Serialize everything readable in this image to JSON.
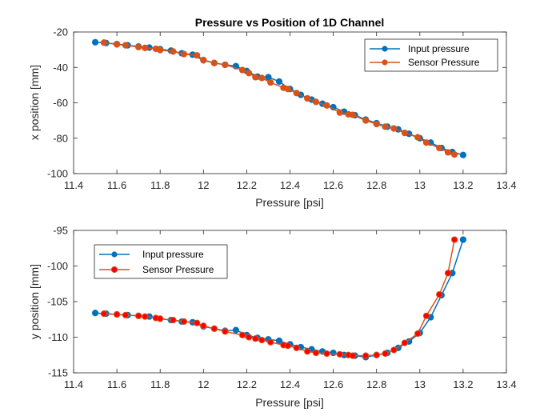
{
  "colors": {
    "input": "#0072BD",
    "sensor": "#D95319",
    "axis": "#262626",
    "sensor_marker_face_bottom": "#FF0000"
  },
  "chart_data": [
    {
      "type": "line",
      "title": "Pressure vs Position of 1D Channel",
      "xlabel": "Pressure [psi]",
      "ylabel": "x position [mm]",
      "xlim": [
        11.4,
        13.4
      ],
      "ylim": [
        -100,
        -20
      ],
      "xticks": [
        11.4,
        11.6,
        11.8,
        12,
        12.2,
        12.4,
        12.6,
        12.8,
        13,
        13.2,
        13.4
      ],
      "yticks": [
        -100,
        -80,
        -60,
        -40,
        -20
      ],
      "xtick_labels": [
        "11.4",
        "11.6",
        "11.8",
        "12",
        "12.2",
        "12.4",
        "12.6",
        "12.8",
        "13",
        "13.2",
        "13.4"
      ],
      "ytick_labels": [
        "-100",
        "-80",
        "-60",
        "-40",
        "-20"
      ],
      "legend": {
        "position": "top-right",
        "entries": [
          "Input pressure",
          "Sensor Pressure"
        ]
      },
      "series": [
        {
          "name": "Input pressure",
          "x": [
            11.5,
            11.55,
            11.6,
            11.65,
            11.7,
            11.75,
            11.8,
            11.85,
            11.9,
            11.95,
            12.0,
            12.05,
            12.1,
            12.15,
            12.2,
            12.25,
            12.3,
            12.35,
            12.4,
            12.45,
            12.5,
            12.55,
            12.6,
            12.65,
            12.7,
            12.75,
            12.8,
            12.85,
            12.9,
            12.95,
            13.0,
            13.05,
            13.1,
            13.15,
            13.2
          ],
          "y": [
            -25.8,
            -26.2,
            -26.8,
            -27.5,
            -28.2,
            -28.8,
            -29.7,
            -30.5,
            -32.0,
            -32.8,
            -36.0,
            -37.5,
            -38.5,
            -39.3,
            -42.0,
            -45.2,
            -45.5,
            -48.0,
            -52.2,
            -55.5,
            -58.2,
            -60.5,
            -62.5,
            -65.0,
            -67.0,
            -69.5,
            -71.5,
            -73.5,
            -75.0,
            -77.5,
            -80.0,
            -82.5,
            -85.5,
            -87.8,
            -89.5
          ]
        },
        {
          "name": "Sensor Pressure",
          "x": [
            11.54,
            11.6,
            11.64,
            11.7,
            11.73,
            11.78,
            11.8,
            11.86,
            11.91,
            11.97,
            12.0,
            12.05,
            12.1,
            12.18,
            12.21,
            12.24,
            12.27,
            12.31,
            12.37,
            12.39,
            12.43,
            12.48,
            12.52,
            12.57,
            12.63,
            12.67,
            12.69,
            12.75,
            12.8,
            12.84,
            12.88,
            12.93,
            12.99,
            13.03,
            13.09,
            13.13,
            13.16
          ],
          "y": [
            -26.0,
            -27.0,
            -27.5,
            -28.5,
            -29.0,
            -29.5,
            -30.2,
            -31.0,
            -32.5,
            -33.2,
            -35.8,
            -37.5,
            -38.5,
            -41.5,
            -43.2,
            -45.5,
            -46.0,
            -48.5,
            -51.5,
            -52.2,
            -54.5,
            -57.5,
            -59.5,
            -61.5,
            -65.5,
            -66.5,
            -66.8,
            -70.0,
            -72.0,
            -73.5,
            -74.5,
            -77.0,
            -79.5,
            -82.5,
            -85.5,
            -88.0,
            -89.2
          ]
        }
      ]
    },
    {
      "type": "line",
      "title": "",
      "xlabel": "Pressure [psi]",
      "ylabel": "y position [mm]",
      "xlim": [
        11.4,
        13.4
      ],
      "ylim": [
        -115,
        -95
      ],
      "xticks": [
        11.4,
        11.6,
        11.8,
        12,
        12.2,
        12.4,
        12.6,
        12.8,
        13,
        13.2,
        13.4
      ],
      "yticks": [
        -115,
        -110,
        -105,
        -100,
        -95
      ],
      "xtick_labels": [
        "11.4",
        "11.6",
        "11.8",
        "12",
        "12.2",
        "12.4",
        "12.6",
        "12.8",
        "13",
        "13.2",
        "13.4"
      ],
      "ytick_labels": [
        "-115",
        "-110",
        "-105",
        "-100",
        "-95"
      ],
      "legend": {
        "position": "top-left",
        "entries": [
          "Input pressure",
          "Sensor Pressure"
        ]
      },
      "series": [
        {
          "name": "Input pressure",
          "x": [
            11.5,
            11.55,
            11.6,
            11.65,
            11.7,
            11.75,
            11.8,
            11.85,
            11.9,
            11.95,
            12.0,
            12.05,
            12.1,
            12.15,
            12.2,
            12.25,
            12.3,
            12.35,
            12.4,
            12.45,
            12.5,
            12.55,
            12.6,
            12.65,
            12.7,
            12.75,
            12.8,
            12.85,
            12.9,
            12.95,
            13.0,
            13.05,
            13.1,
            13.15,
            13.2
          ],
          "y": [
            -106.6,
            -106.7,
            -106.8,
            -106.9,
            -107.0,
            -107.1,
            -107.4,
            -107.6,
            -107.8,
            -107.9,
            -108.5,
            -108.8,
            -109.1,
            -109.0,
            -109.7,
            -110.1,
            -110.3,
            -110.5,
            -111.0,
            -111.4,
            -111.7,
            -112.0,
            -112.2,
            -112.5,
            -112.6,
            -112.8,
            -112.5,
            -112.2,
            -111.5,
            -110.6,
            -109.4,
            -107.2,
            -104.1,
            -101.0,
            -96.3
          ]
        },
        {
          "name": "Sensor Pressure",
          "x": [
            11.54,
            11.6,
            11.64,
            11.7,
            11.73,
            11.78,
            11.8,
            11.86,
            11.91,
            11.97,
            12.0,
            12.05,
            12.1,
            12.18,
            12.21,
            12.24,
            12.27,
            12.31,
            12.37,
            12.39,
            12.43,
            12.48,
            12.52,
            12.57,
            12.63,
            12.67,
            12.69,
            12.75,
            12.8,
            12.84,
            12.88,
            12.93,
            12.99,
            13.03,
            13.09,
            13.13,
            13.16
          ],
          "y": [
            -106.7,
            -106.8,
            -106.9,
            -107.0,
            -107.1,
            -107.3,
            -107.4,
            -107.6,
            -107.8,
            -108.0,
            -108.4,
            -108.8,
            -109.2,
            -109.7,
            -110.0,
            -110.2,
            -110.4,
            -110.7,
            -111.1,
            -111.2,
            -111.5,
            -112.0,
            -112.2,
            -112.3,
            -112.4,
            -112.5,
            -112.6,
            -112.6,
            -112.5,
            -112.3,
            -111.8,
            -110.8,
            -109.5,
            -107.0,
            -104.0,
            -101.0,
            -96.3
          ]
        }
      ]
    }
  ]
}
